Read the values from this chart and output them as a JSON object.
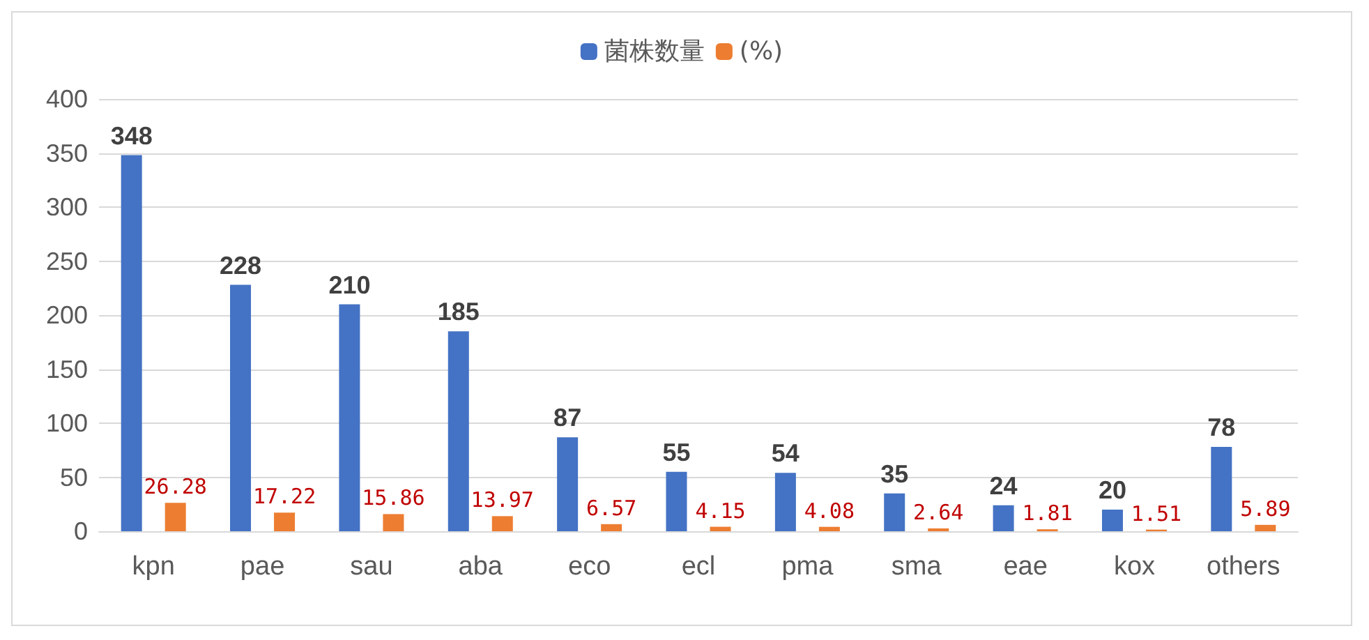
{
  "chart_data": {
    "type": "bar",
    "categories": [
      "kpn",
      "pae",
      "sau",
      "aba",
      "eco",
      "ecl",
      "pma",
      "sma",
      "eae",
      "kox",
      "others"
    ],
    "series": [
      {
        "name": "菌株数量",
        "color": "#4472c4",
        "values": [
          348,
          228,
          210,
          185,
          87,
          55,
          54,
          35,
          24,
          20,
          78
        ]
      },
      {
        "name": "(%)",
        "color": "#ed7d31",
        "values": [
          26.28,
          17.22,
          15.86,
          13.97,
          6.57,
          4.15,
          4.08,
          2.64,
          1.81,
          1.51,
          5.89
        ]
      }
    ],
    "ylim": [
      0,
      400
    ],
    "yticks": [
      0,
      50,
      100,
      150,
      200,
      250,
      300,
      350,
      400
    ],
    "grid": "y",
    "legend": "top",
    "data_labels": true
  }
}
